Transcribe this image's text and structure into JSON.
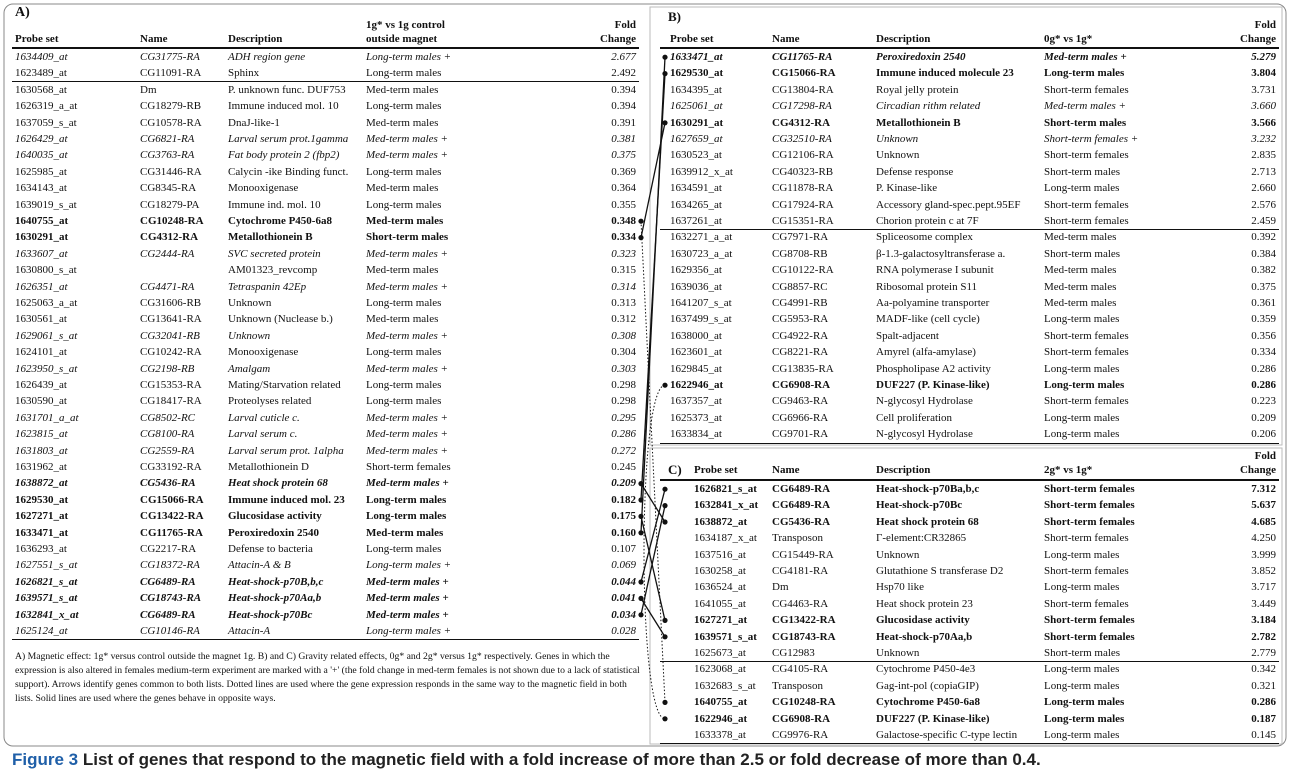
{
  "panels": [
    {
      "label": "A)",
      "headers": [
        [
          "Probe set"
        ],
        [
          "Name"
        ],
        [
          "Description"
        ],
        [
          "1g* vs 1g control",
          "outside magnet"
        ],
        [
          "Fold",
          "Change"
        ]
      ],
      "rows": [
        {
          "cells": [
            "1634409_at",
            "CG31775-RA",
            "ADH region gene",
            "Long-term males +",
            "2.677"
          ],
          "style": "italic"
        },
        {
          "cells": [
            "1623489_at",
            "CG11091-RA",
            "Sphinx",
            "Long-term males",
            "2.492"
          ]
        },
        {
          "cells": [
            "1630568_at",
            "Dm",
            "P. unknown func. DUF753",
            "Med-term males",
            "0.394"
          ]
        },
        {
          "cells": [
            "1626319_a_at",
            "CG18279-RB",
            "Immune induced mol. 10",
            "Long-term males",
            "0.394"
          ]
        },
        {
          "cells": [
            "1637059_s_at",
            "CG10578-RA",
            "DnaJ-like-1",
            "Med-term males",
            "0.391"
          ]
        },
        {
          "cells": [
            "1626429_at",
            "CG6821-RA",
            "Larval serum prot.1gamma",
            "Med-term males +",
            "0.381"
          ],
          "style": "italic"
        },
        {
          "cells": [
            "1640035_at",
            "CG3763-RA",
            "Fat body protein 2 (fbp2)",
            "Med-term males +",
            "0.375"
          ],
          "style": "italic"
        },
        {
          "cells": [
            "1625985_at",
            "CG31446-RA",
            "Calycin -ike Binding funct.",
            "Long-term males",
            "0.369"
          ]
        },
        {
          "cells": [
            "1634143_at",
            "CG8345-RA",
            "Monooxigenase",
            "Med-term males",
            "0.364"
          ]
        },
        {
          "cells": [
            "1639019_s_at",
            "CG18279-PA",
            "Immune ind. mol. 10",
            "Long-term males",
            "0.355"
          ]
        },
        {
          "cells": [
            "1640755_at",
            "CG10248-RA",
            "Cytochrome P450-6a8",
            "Med-term males",
            "0.348"
          ],
          "style": "bold"
        },
        {
          "cells": [
            "1630291_at",
            "CG4312-RA",
            "Metallothionein B",
            "Short-term males",
            "0.334"
          ],
          "style": "bold"
        },
        {
          "cells": [
            "1633607_at",
            "CG2444-RA",
            "SVC secreted protein",
            "Med-term males +",
            "0.323"
          ],
          "style": "italic"
        },
        {
          "cells": [
            "1630800_s_at",
            null,
            "AM01323_revcomp",
            "Med-term males",
            "0.315"
          ]
        },
        {
          "cells": [
            "1626351_at",
            "CG4471-RA",
            "Tetraspanin 42Ep",
            "Med-term males +",
            "0.314"
          ],
          "style": "italic"
        },
        {
          "cells": [
            "1625063_a_at",
            "CG31606-RB",
            "Unknown",
            "Long-term males",
            "0.313"
          ]
        },
        {
          "cells": [
            "1630561_at",
            "CG13641-RA",
            "Unknown (Nuclease b.)",
            "Med-term males",
            "0.312"
          ]
        },
        {
          "cells": [
            "1629061_s_at",
            "CG32041-RB",
            "Unknown",
            "Med-term males +",
            "0.308"
          ],
          "style": "italic"
        },
        {
          "cells": [
            "1624101_at",
            "CG10242-RA",
            "Monooxigenase",
            "Long-term males",
            "0.304"
          ]
        },
        {
          "cells": [
            "1623950_s_at",
            "CG2198-RB",
            "Amalgam",
            "Med-term males +",
            "0.303"
          ],
          "style": "italic"
        },
        {
          "cells": [
            "1626439_at",
            "CG15353-RA",
            "Mating/Starvation related",
            "Long-term males",
            "0.298"
          ]
        },
        {
          "cells": [
            "1630590_at",
            "CG18417-RA",
            "Proteolyses related",
            "Long-term males",
            "0.298"
          ]
        },
        {
          "cells": [
            "1631701_a_at",
            "CG8502-RC",
            "Larval cuticle c.",
            "Med-term males +",
            "0.295"
          ],
          "style": "italic"
        },
        {
          "cells": [
            "1623815_at",
            "CG8100-RA",
            "Larval serum c.",
            "Med-term males +",
            "0.286"
          ],
          "style": "italic"
        },
        {
          "cells": [
            "1631803_at",
            "CG2559-RA",
            "Larval serum prot. 1alpha",
            "Med-term males +",
            "0.272"
          ],
          "style": "italic"
        },
        {
          "cells": [
            "1631962_at",
            "CG33192-RA",
            "Metallothionein D",
            "Short-term females",
            "0.245"
          ]
        },
        {
          "cells": [
            "1638872_at",
            "CG5436-RA",
            "Heat shock protein 68",
            "Med-term males +",
            "0.209"
          ],
          "style": "bold italic"
        },
        {
          "cells": [
            "1629530_at",
            "CG15066-RA",
            "Immune induced mol. 23",
            "Long-term males",
            "0.182"
          ],
          "style": "bold"
        },
        {
          "cells": [
            "1627271_at",
            "CG13422-RA",
            "Glucosidase activity",
            "Long-term males",
            "0.175"
          ],
          "style": "bold"
        },
        {
          "cells": [
            "1633471_at",
            "CG11765-RA",
            "Peroxiredoxin 2540",
            "Med-term males",
            "0.160"
          ],
          "style": "bold"
        },
        {
          "cells": [
            "1636293_at",
            "CG2217-RA",
            "Defense to bacteria",
            "Long-term males",
            "0.107"
          ]
        },
        {
          "cells": [
            "1627551_s_at",
            "CG18372-RA",
            "Attacin-A & B",
            "Long-term males +",
            "0.069"
          ],
          "style": "italic"
        },
        {
          "cells": [
            "1626821_s_at",
            "CG6489-RA",
            "Heat-shock-p70B,b,c",
            "Med-term males +",
            "0.044"
          ],
          "style": "bold italic"
        },
        {
          "cells": [
            "1639571_s_at",
            "CG18743-RA",
            "Heat-shock-p70Aa,b",
            "Med-term males +",
            "0.041"
          ],
          "style": "bold italic"
        },
        {
          "cells": [
            "1632841_x_at",
            "CG6489-RA",
            "Heat-shock-p70Bc",
            "Med-term males +",
            "0.034"
          ],
          "style": "bold italic"
        },
        {
          "cells": [
            "1625124_at",
            "CG10146-RA",
            "Attacin-A",
            "Long-term males +",
            "0.028"
          ],
          "style": "italic"
        }
      ],
      "caption": "A) Magnetic effect: 1g* versus control outside the magnet 1g. B) and C) Gravity related effects, 0g* and 2g* versus 1g* respectively. Genes in which the expression is also altered in females medium-term experiment are marked with a '+' (the fold change in med-term females is not shown due to a lack of statistical support). Arrows identify genes common to both lists. Dotted lines are used where the gene expression responds in the same way to the magnetic field in both lists. Solid lines are used where the genes behave in opposite ways."
    },
    {
      "label": "B)",
      "headers": [
        [
          "Probe set"
        ],
        [
          "Name"
        ],
        [
          "Description"
        ],
        [
          "0g* vs 1g*"
        ],
        [
          "Fold",
          "Change"
        ]
      ],
      "rows": [
        {
          "cells": [
            "1633471_at",
            "CG11765-RA",
            "Peroxiredoxin 2540",
            "Med-term males +",
            "5.279"
          ],
          "style": "bold italic"
        },
        {
          "cells": [
            "1629530_at",
            "CG15066-RA",
            "Immune induced molecule 23",
            "Long-term males",
            "3.804"
          ],
          "style": "bold"
        },
        {
          "cells": [
            "1634395_at",
            "CG13804-RA",
            "Royal jelly protein",
            "Short-term females",
            "3.731"
          ]
        },
        {
          "cells": [
            "1625061_at",
            "CG17298-RA",
            "Circadian rithm related",
            "Med-term males +",
            "3.660"
          ],
          "style": "italic"
        },
        {
          "cells": [
            "1630291_at",
            "CG4312-RA",
            "Metallothionein B",
            "Short-term males",
            "3.566"
          ],
          "style": "bold"
        },
        {
          "cells": [
            "1627659_at",
            "CG32510-RA",
            "Unknown",
            "Short-term females +",
            "3.232"
          ],
          "style": "italic"
        },
        {
          "cells": [
            "1630523_at",
            "CG12106-RA",
            "Unknown",
            "Short-term females",
            "2.835"
          ]
        },
        {
          "cells": [
            "1639912_x_at",
            "CG40323-RB",
            "Defense response",
            "Short-term males",
            "2.713"
          ]
        },
        {
          "cells": [
            "1634591_at",
            "CG11878-RA",
            "P. Kinase-like",
            "Long-term males",
            "2.660"
          ]
        },
        {
          "cells": [
            "1634265_at",
            "CG17924-RA",
            "Accessory gland-spec.pept.95EF",
            "Short-term females",
            "2.576"
          ]
        },
        {
          "cells": [
            "1637261_at",
            "CG15351-RA",
            "Chorion protein c at 7F",
            "Short-term females",
            "2.459"
          ]
        },
        {
          "cells": [
            "1632271_a_at",
            "CG7971-RA",
            "Spliceosome complex",
            "Med-term males",
            "0.392"
          ]
        },
        {
          "cells": [
            "1630723_a_at",
            "CG8708-RB",
            "β-1.3-galactosyltransferase a.",
            "Short-term males",
            "0.384"
          ]
        },
        {
          "cells": [
            "1629356_at",
            "CG10122-RA",
            "RNA polymerase I subunit",
            "Med-term males",
            "0.382"
          ]
        },
        {
          "cells": [
            "1639036_at",
            "CG8857-RC",
            "Ribosomal protein S11",
            "Med-term males",
            "0.375"
          ]
        },
        {
          "cells": [
            "1641207_s_at",
            "CG4991-RB",
            "Aa-polyamine transporter",
            "Med-term males",
            "0.361"
          ]
        },
        {
          "cells": [
            "1637499_s_at",
            "CG5953-RA",
            "MADF-like (cell cycle)",
            "Long-term males",
            "0.359"
          ]
        },
        {
          "cells": [
            "1638000_at",
            "CG4922-RA",
            "Spalt-adjacent",
            "Short-term females",
            "0.356"
          ]
        },
        {
          "cells": [
            "1623601_at",
            "CG8221-RA",
            "Amyrel (alfa-amylase)",
            "Short-term females",
            "0.334"
          ]
        },
        {
          "cells": [
            "1629845_at",
            "CG13835-RA",
            "Phospholipase A2 activity",
            "Long-term males",
            "0.286"
          ]
        },
        {
          "cells": [
            "1622946_at",
            "CG6908-RA",
            "DUF227 (P. Kinase-like)",
            "Long-term males",
            "0.286"
          ],
          "style": "bold"
        },
        {
          "cells": [
            "1637357_at",
            "CG9463-RA",
            "N-glycosyl Hydrolase",
            "Short-term females",
            "0.223"
          ]
        },
        {
          "cells": [
            "1625373_at",
            "CG6966-RA",
            "Cell proliferation",
            "Long-term males",
            "0.209"
          ]
        },
        {
          "cells": [
            "1633834_at",
            "CG9701-RA",
            "N-glycosyl Hydrolase",
            "Long-term males",
            "0.206"
          ]
        }
      ]
    },
    {
      "label": "C)",
      "headers": [
        [
          "Probe set"
        ],
        [
          "Name"
        ],
        [
          "Description"
        ],
        [
          "2g* vs 1g*"
        ],
        [
          "Fold",
          "Change"
        ]
      ],
      "rows": [
        {
          "cells": [
            "1626821_s_at",
            "CG6489-RA",
            "Heat-shock-p70Ba,b,c",
            "Short-term females",
            "7.312"
          ],
          "style": "bold"
        },
        {
          "cells": [
            "1632841_x_at",
            "CG6489-RA",
            "Heat-shock-p70Bc",
            "Short-term females",
            "5.637"
          ],
          "style": "bold"
        },
        {
          "cells": [
            "1638872_at",
            "CG5436-RA",
            "Heat shock protein 68",
            "Short-term females",
            "4.685"
          ],
          "style": "bold"
        },
        {
          "cells": [
            "1634187_x_at",
            "Transposon",
            "Γ-element:CR32865",
            "Short-term females",
            "4.250"
          ]
        },
        {
          "cells": [
            "1637516_at",
            "CG15449-RA",
            "Unknown",
            "Long-term males",
            "3.999"
          ]
        },
        {
          "cells": [
            "1630258_at",
            "CG4181-RA",
            "Glutathione S transferase D2",
            "Short-term females",
            "3.852"
          ]
        },
        {
          "cells": [
            "1636524_at",
            "Dm",
            "Hsp70 like",
            "Long-term males",
            "3.717"
          ]
        },
        {
          "cells": [
            "1641055_at",
            "CG4463-RA",
            "Heat shock protein 23",
            "Short-term females",
            "3.449"
          ]
        },
        {
          "cells": [
            "1627271_at",
            "CG13422-RA",
            "Glucosidase activity",
            "Short-term females",
            "3.184"
          ],
          "style": "bold"
        },
        {
          "cells": [
            "1639571_s_at",
            "CG18743-RA",
            "Heat-shock-p70Aa,b",
            "Short-term females",
            "2.782"
          ],
          "style": "bold"
        },
        {
          "cells": [
            "1625673_at",
            "CG12983",
            "Unknown",
            "Short-term males",
            "2.779"
          ]
        },
        {
          "cells": [
            "1623068_at",
            "CG4105-RA",
            "Cytochrome P450-4e3",
            "Long-term males",
            "0.342"
          ]
        },
        {
          "cells": [
            "1632683_s_at",
            "Transposon",
            "Gag-int-pol (copiaGIP)",
            "Long-term males",
            "0.321"
          ]
        },
        {
          "cells": [
            "1640755_at",
            "CG10248-RA",
            "Cytochrome P450-6a8",
            "Long-term males",
            "0.286"
          ],
          "style": "bold"
        },
        {
          "cells": [
            "1622946_at",
            "CG6908-RA",
            "DUF227 (P. Kinase-like)",
            "Long-term males",
            "0.187"
          ],
          "style": "bold"
        },
        {
          "cells": [
            "1633378_at",
            "CG9976-RA",
            "Galactose-specific C-type lectin",
            "Long-term males",
            "0.145"
          ]
        }
      ]
    }
  ],
  "figure_caption": {
    "label": "Figure 3",
    "text": "List of genes that respond to the magnetic field with a fold increase of more than 2.5 or fold decrease of more than 0.4."
  }
}
